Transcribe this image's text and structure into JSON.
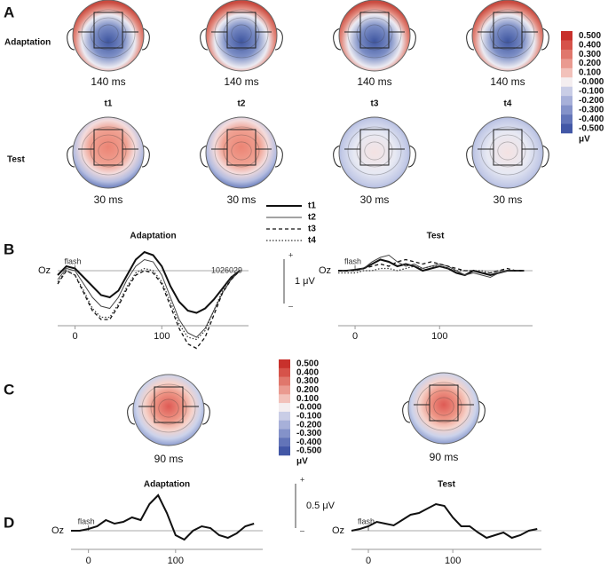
{
  "panel_labels": [
    "A",
    "B",
    "C",
    "D"
  ],
  "panel_a": {
    "rows": [
      "Adaptation",
      "Test"
    ],
    "columns": [
      "t1",
      "t2",
      "t3",
      "t4"
    ],
    "adaptation_times": [
      "140 ms",
      "140 ms",
      "140 ms",
      "140 ms"
    ],
    "test_times": [
      "30 ms",
      "30 ms",
      "30 ms",
      "30 ms"
    ]
  },
  "panel_c": {
    "times": [
      "90 ms",
      "90 ms"
    ]
  },
  "colorbars": [
    {
      "labels": [
        "0.500",
        "0.400",
        "0.300",
        "0.200",
        "0.100",
        "-0.000",
        "-0.100",
        "-0.200",
        "-0.300",
        "-0.400",
        "-0.500"
      ],
      "unit": "μV",
      "colors": [
        "#c8312c",
        "#d6534a",
        "#e0776c",
        "#ea9a90",
        "#f2c1ba",
        "#f4eef0",
        "#c9cde6",
        "#a7b0d9",
        "#8492c9",
        "#6274b8",
        "#4257a6"
      ]
    },
    {
      "labels": [
        "0.500",
        "0.400",
        "0.300",
        "0.200",
        "0.100",
        "-0.000",
        "-0.100",
        "-0.200",
        "-0.300",
        "-0.400",
        "-0.500"
      ],
      "unit": "μV",
      "colors": [
        "#c8312c",
        "#d6534a",
        "#e0776c",
        "#ea9a90",
        "#f2c1ba",
        "#f4eef0",
        "#c9cde6",
        "#a7b0d9",
        "#8492c9",
        "#6274b8",
        "#4257a6"
      ]
    }
  ],
  "scale_bars": [
    {
      "plus": "+",
      "label": "1 μV",
      "minus": "–"
    },
    {
      "plus": "+",
      "label": "0.5 μV",
      "minus": "–"
    }
  ],
  "chart_data": [
    {
      "type": "line",
      "title": "Adaptation",
      "channel_label": "Oz",
      "flash_label": "flash",
      "extra_label": "1026029",
      "x": [
        -20,
        -10,
        0,
        10,
        20,
        30,
        40,
        50,
        60,
        70,
        80,
        90,
        100,
        110,
        120,
        130,
        140,
        150,
        160,
        170,
        180,
        190
      ],
      "xlim": [
        -20,
        200
      ],
      "xticks": [
        0,
        100
      ],
      "ylim": [
        -1.8,
        0.7
      ],
      "legend": true,
      "series": [
        {
          "name": "t1",
          "color": "#111111",
          "width": 2,
          "dash": "solid",
          "values": [
            -0.1,
            0.1,
            0.05,
            -0.15,
            -0.35,
            -0.55,
            -0.6,
            -0.45,
            -0.1,
            0.25,
            0.42,
            0.35,
            0.1,
            -0.35,
            -0.7,
            -0.9,
            -0.95,
            -0.85,
            -0.65,
            -0.4,
            -0.15,
            0
          ]
        },
        {
          "name": "t2",
          "color": "#444444",
          "width": 1,
          "dash": "solid",
          "values": [
            -0.2,
            0.05,
            0,
            -0.3,
            -0.6,
            -0.8,
            -0.85,
            -0.6,
            -0.2,
            0.1,
            0.25,
            0.2,
            -0.1,
            -0.6,
            -1.1,
            -1.4,
            -1.5,
            -1.3,
            -0.9,
            -0.5,
            -0.2,
            0
          ]
        },
        {
          "name": "t3",
          "color": "#111111",
          "width": 1.3,
          "dash": "dashed",
          "values": [
            -0.3,
            0,
            -0.1,
            -0.5,
            -0.9,
            -1.1,
            -1.1,
            -0.8,
            -0.4,
            -0.1,
            0.0,
            -0.05,
            -0.3,
            -0.8,
            -1.3,
            -1.65,
            -1.75,
            -1.5,
            -1.0,
            -0.5,
            -0.2,
            0
          ]
        },
        {
          "name": "t4",
          "color": "#333333",
          "width": 1.2,
          "dash": "dotted",
          "values": [
            -0.25,
            0,
            -0.1,
            -0.45,
            -0.85,
            -1.05,
            -1.05,
            -0.75,
            -0.35,
            -0.05,
            0.05,
            0,
            -0.25,
            -0.7,
            -1.2,
            -1.5,
            -1.55,
            -1.35,
            -0.9,
            -0.45,
            -0.15,
            0
          ]
        }
      ]
    },
    {
      "type": "line",
      "title": "Test",
      "channel_label": "Oz",
      "flash_label": "flash",
      "x": [
        -20,
        -10,
        0,
        10,
        20,
        30,
        40,
        50,
        60,
        70,
        80,
        90,
        100,
        110,
        120,
        130,
        140,
        150,
        160,
        170,
        180,
        190,
        200
      ],
      "xlim": [
        -20,
        210
      ],
      "xticks": [
        0,
        100
      ],
      "ylim": [
        -1.8,
        0.7
      ],
      "series": [
        {
          "color": "#111111",
          "width": 2,
          "dash": "solid",
          "values": [
            0,
            0,
            0.02,
            0.05,
            0.15,
            0.25,
            0.2,
            0.1,
            0.15,
            0.1,
            0.0,
            0.05,
            0.1,
            0.05,
            -0.05,
            -0.1,
            0,
            -0.05,
            -0.1,
            -0.05,
            0,
            0,
            0
          ]
        },
        {
          "color": "#444444",
          "width": 1,
          "dash": "solid",
          "values": [
            0,
            0,
            0,
            0.05,
            0.2,
            0.3,
            0.35,
            0.2,
            0.1,
            0.15,
            0.05,
            0.1,
            0.15,
            0.1,
            0,
            -0.1,
            -0.05,
            -0.1,
            -0.15,
            -0.05,
            0,
            0,
            0
          ]
        },
        {
          "color": "#111111",
          "width": 1.3,
          "dash": "dashed",
          "values": [
            0,
            0,
            0,
            0.05,
            0.1,
            0.15,
            0.1,
            0.2,
            0.25,
            0.2,
            0.15,
            0.2,
            0.15,
            0.1,
            0.05,
            0,
            0,
            -0.05,
            -0.05,
            0,
            0.05,
            0,
            0
          ]
        },
        {
          "color": "#333333",
          "width": 1.2,
          "dash": "dotted",
          "values": [
            -0.05,
            -0.05,
            -0.05,
            0,
            0,
            0.05,
            0.05,
            0,
            0.05,
            0.1,
            0.05,
            0.1,
            0.1,
            0.05,
            0,
            0,
            0,
            0,
            -0.05,
            0,
            0,
            0,
            0
          ]
        }
      ]
    },
    {
      "type": "line",
      "title": "Adaptation",
      "channel_label": "Oz",
      "flash_label": "flash",
      "x": [
        -20,
        -10,
        0,
        10,
        20,
        30,
        40,
        50,
        60,
        70,
        80,
        90,
        100,
        110,
        120,
        130,
        140,
        150,
        160,
        170,
        180,
        190
      ],
      "xlim": [
        -20,
        200
      ],
      "xticks": [
        0,
        100
      ],
      "ylim": [
        -0.15,
        0.5
      ],
      "series": [
        {
          "color": "#111111",
          "width": 2,
          "dash": "solid",
          "values": [
            0,
            0,
            0.02,
            0.05,
            0.12,
            0.08,
            0.1,
            0.15,
            0.12,
            0.3,
            0.4,
            0.2,
            -0.05,
            -0.1,
            0,
            0.05,
            0.03,
            -0.05,
            -0.08,
            -0.03,
            0.05,
            0.08
          ]
        }
      ]
    },
    {
      "type": "line",
      "title": "Test",
      "channel_label": "Oz",
      "flash_label": "flash",
      "x": [
        -20,
        -10,
        0,
        10,
        20,
        30,
        40,
        50,
        60,
        70,
        80,
        90,
        100,
        110,
        120,
        130,
        140,
        150,
        160,
        170,
        180,
        190,
        200
      ],
      "xlim": [
        -20,
        205
      ],
      "xticks": [
        0,
        100
      ],
      "ylim": [
        -0.15,
        0.5
      ],
      "series": [
        {
          "color": "#111111",
          "width": 2,
          "dash": "solid",
          "values": [
            0,
            0.02,
            0.05,
            0.1,
            0.08,
            0.06,
            0.12,
            0.18,
            0.2,
            0.25,
            0.3,
            0.28,
            0.15,
            0.05,
            0.05,
            -0.02,
            -0.08,
            -0.05,
            -0.02,
            -0.08,
            -0.05,
            0,
            0.02
          ]
        }
      ]
    }
  ]
}
